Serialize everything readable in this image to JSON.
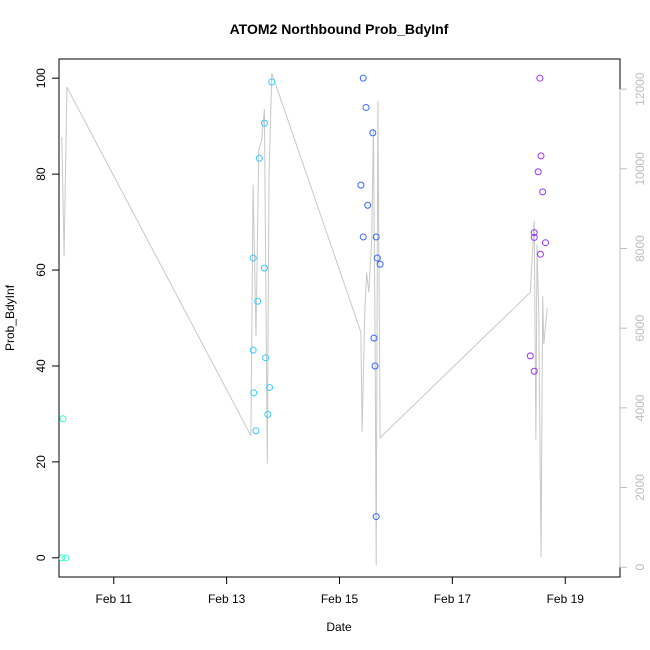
{
  "chart_data": {
    "type": "scatter",
    "title": "ATOM2 Northbound Prob_BdyInf",
    "xlabel": "Date",
    "ylabel": "Prob_BdyInf",
    "ylabel_right": "",
    "xlim": [
      -0.97,
      8.97
    ],
    "ylim": [
      -4,
      104
    ],
    "y2lim": [
      -246,
      12757
    ],
    "x_ticks": [
      {
        "value": 0,
        "label": "Feb 11"
      },
      {
        "value": 2,
        "label": "Feb 13"
      },
      {
        "value": 4,
        "label": "Feb 15"
      },
      {
        "value": 6,
        "label": "Feb 17"
      },
      {
        "value": 8,
        "label": "Feb 19"
      }
    ],
    "y_ticks": [
      0,
      20,
      40,
      60,
      80,
      100
    ],
    "y2_ticks": [
      0,
      2000,
      4000,
      6000,
      8000,
      10000,
      12000
    ],
    "grid": false,
    "series": [
      {
        "color": "#33ffcc",
        "points": [
          [
            -0.9,
            29
          ],
          [
            -0.92,
            0
          ],
          [
            -0.85,
            0
          ]
        ]
      },
      {
        "color": "#33ccff",
        "points": [
          [
            2.47,
            62.5
          ],
          [
            2.47,
            43.3
          ],
          [
            2.48,
            34.4
          ],
          [
            2.52,
            26.5
          ],
          [
            2.55,
            53.5
          ],
          [
            2.58,
            83.3
          ],
          [
            2.67,
            90.6
          ],
          [
            2.67,
            60.4
          ],
          [
            2.69,
            41.7
          ],
          [
            2.73,
            29.9
          ],
          [
            2.76,
            35.5
          ],
          [
            2.8,
            99.2
          ]
        ]
      },
      {
        "color": "#3366ff",
        "points": [
          [
            4.38,
            77.7
          ],
          [
            4.42,
            100
          ],
          [
            4.42,
            66.9
          ],
          [
            4.47,
            93.9
          ],
          [
            4.5,
            73.5
          ],
          [
            4.59,
            88.6
          ],
          [
            4.61,
            45.8
          ],
          [
            4.63,
            40.0
          ],
          [
            4.65,
            66.9
          ],
          [
            4.65,
            8.6
          ],
          [
            4.67,
            62.5
          ],
          [
            4.72,
            61.2
          ]
        ]
      },
      {
        "color": "#9933ff",
        "points": [
          [
            7.38,
            42.1
          ],
          [
            7.45,
            67.8
          ],
          [
            7.45,
            66.8
          ],
          [
            7.45,
            38.9
          ],
          [
            7.52,
            80.5
          ],
          [
            7.55,
            100
          ],
          [
            7.56,
            63.3
          ],
          [
            7.57,
            83.8
          ],
          [
            7.6,
            76.3
          ],
          [
            7.65,
            65.7
          ]
        ]
      }
    ],
    "line_series": {
      "color": "#c8c8c8",
      "axis": "right",
      "points": [
        [
          -0.92,
          10800
        ],
        [
          -0.88,
          7800
        ],
        [
          -0.83,
          12050
        ],
        [
          2.43,
          3300
        ],
        [
          2.47,
          9600
        ],
        [
          2.52,
          5800
        ],
        [
          2.57,
          10500
        ],
        [
          2.62,
          10700
        ],
        [
          2.67,
          11500
        ],
        [
          2.72,
          2600
        ],
        [
          2.75,
          9800
        ],
        [
          2.8,
          12400
        ],
        [
          4.38,
          5900
        ],
        [
          4.4,
          3400
        ],
        [
          4.45,
          6500
        ],
        [
          4.48,
          7400
        ],
        [
          4.52,
          6900
        ],
        [
          4.57,
          8200
        ],
        [
          4.6,
          11000
        ],
        [
          4.63,
          5700
        ],
        [
          4.65,
          50
        ],
        [
          4.68,
          11700
        ],
        [
          4.72,
          3250
        ],
        [
          7.38,
          6900
        ],
        [
          7.45,
          8700
        ],
        [
          7.48,
          3200
        ],
        [
          7.5,
          8100
        ],
        [
          7.53,
          6500
        ],
        [
          7.57,
          250
        ],
        [
          7.6,
          6800
        ],
        [
          7.62,
          5600
        ],
        [
          7.68,
          6500
        ]
      ]
    }
  }
}
